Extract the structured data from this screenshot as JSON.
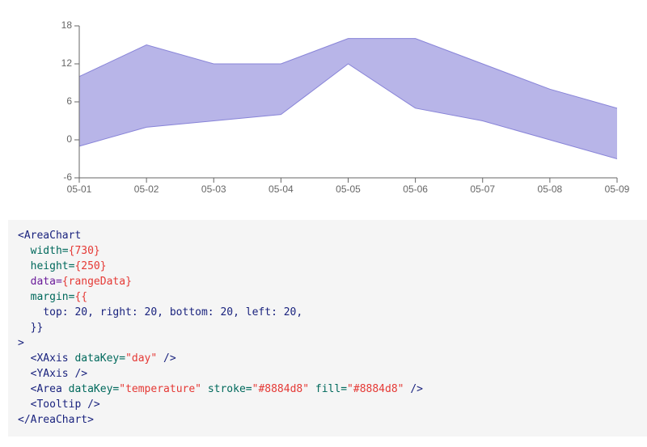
{
  "chart_data": {
    "type": "range-area",
    "categories": [
      "05-01",
      "05-02",
      "05-03",
      "05-04",
      "05-05",
      "05-06",
      "05-07",
      "05-08",
      "05-09"
    ],
    "series": [
      {
        "name": "temperature",
        "color": "#8884d8",
        "values": [
          [
            -1,
            10
          ],
          [
            2,
            15
          ],
          [
            3,
            12
          ],
          [
            4,
            12
          ],
          [
            12,
            16
          ],
          [
            5,
            16
          ],
          [
            3,
            12
          ],
          [
            0,
            8
          ],
          [
            -3,
            5
          ]
        ]
      }
    ],
    "ylim": [
      -6,
      18
    ],
    "yticks": [
      -6,
      0,
      6,
      12,
      18
    ]
  },
  "code": {
    "lines": [
      [
        {
          "text": "<AreaChart",
          "color": "#1a237e"
        }
      ],
      [
        {
          "text": "  width=",
          "color": "#00695c"
        },
        {
          "text": "{730}",
          "color": "#e53935"
        }
      ],
      [
        {
          "text": "  height=",
          "color": "#00695c"
        },
        {
          "text": "{250}",
          "color": "#e53935"
        }
      ],
      [
        {
          "text": "  data=",
          "color": "#6a1b9a"
        },
        {
          "text": "{rangeData}",
          "color": "#e53935"
        }
      ],
      [
        {
          "text": "  margin=",
          "color": "#00695c"
        },
        {
          "text": "{{",
          "color": "#e53935"
        }
      ],
      [
        {
          "text": "    top: 20, right: 20, bottom: 20, left: 20,",
          "color": "#1a237e"
        }
      ],
      [
        {
          "text": "  }}",
          "color": "#1a237e"
        }
      ],
      [
        {
          "text": ">",
          "color": "#1a237e"
        }
      ],
      [
        {
          "text": "  <XAxis",
          "color": "#1a237e"
        },
        {
          "text": " dataKey=",
          "color": "#00695c"
        },
        {
          "text": "\"day\"",
          "color": "#e53935"
        },
        {
          "text": " />",
          "color": "#1a237e"
        }
      ],
      [
        {
          "text": "  <YAxis />",
          "color": "#1a237e"
        }
      ],
      [
        {
          "text": "  <Area",
          "color": "#1a237e"
        },
        {
          "text": " dataKey=",
          "color": "#00695c"
        },
        {
          "text": "\"temperature\"",
          "color": "#e53935"
        },
        {
          "text": " stroke=",
          "color": "#00695c"
        },
        {
          "text": "\"#8884d8\"",
          "color": "#e53935"
        },
        {
          "text": " fill=",
          "color": "#00695c"
        },
        {
          "text": "\"#8884d8\"",
          "color": "#e53935"
        },
        {
          "text": " />",
          "color": "#1a237e"
        }
      ],
      [
        {
          "text": "  <Tooltip />",
          "color": "#1a237e"
        }
      ],
      [
        {
          "text": "</AreaChart>",
          "color": "#1a237e"
        }
      ]
    ]
  }
}
